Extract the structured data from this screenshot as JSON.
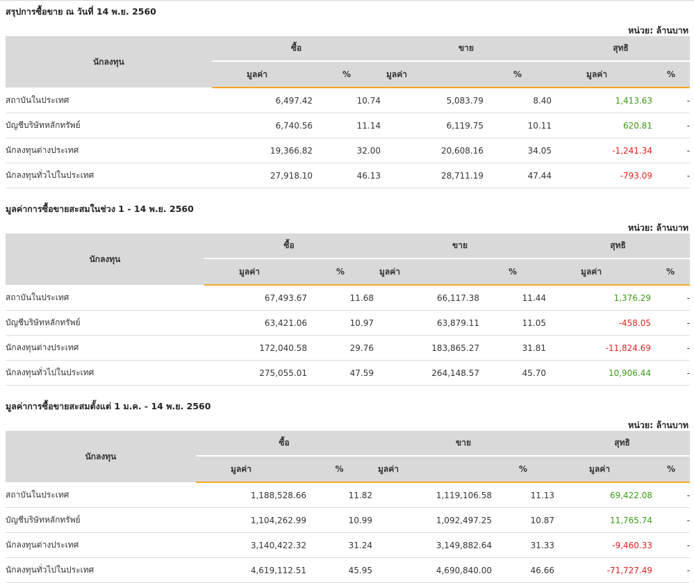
{
  "sections": [
    {
      "title": "สรุปการซื้อขาย ณ วันที่ 14 พ.ย. 2560",
      "unit": "หน่วย: ล้านบาท",
      "headers": {
        "investor": "นักลงทุน",
        "buy": "ซื้อ",
        "sell": "ขาย",
        "net": "สุทธิ",
        "value": "มูลค่า",
        "percent": "%"
      },
      "rows": [
        {
          "name": "สถาบันในประเทศ",
          "buy_value": "6,497.42",
          "buy_pct": "10.74",
          "sell_value": "5,083.79",
          "sell_pct": "8.40",
          "net_value": "1,413.63",
          "net_pct": "-",
          "net_sign": "pos"
        },
        {
          "name": "บัญชีบริษัทหลักทรัพย์",
          "buy_value": "6,740.56",
          "buy_pct": "11.14",
          "sell_value": "6,119.75",
          "sell_pct": "10.11",
          "net_value": "620.81",
          "net_pct": "-",
          "net_sign": "pos"
        },
        {
          "name": "นักลงทุนต่างประเทศ",
          "buy_value": "19,366.82",
          "buy_pct": "32.00",
          "sell_value": "20,608.16",
          "sell_pct": "34.05",
          "net_value": "-1,241.34",
          "net_pct": "-",
          "net_sign": "neg"
        },
        {
          "name": "นักลงทุนทั่วไปในประเทศ",
          "buy_value": "27,918.10",
          "buy_pct": "46.13",
          "sell_value": "28,711.19",
          "sell_pct": "47.44",
          "net_value": "-793.09",
          "net_pct": "-",
          "net_sign": "neg"
        }
      ]
    },
    {
      "title": "มูลค่าการซื้อขายสะสมในช่วง 1 - 14 พ.ย. 2560",
      "unit": "หน่วย: ล้านบาท",
      "headers": {
        "investor": "นักลงทุน",
        "buy": "ซื้อ",
        "sell": "ขาย",
        "net": "สุทธิ",
        "value": "มูลค่า",
        "percent": "%"
      },
      "rows": [
        {
          "name": "สถาบันในประเทศ",
          "buy_value": "67,493.67",
          "buy_pct": "11.68",
          "sell_value": "66,117.38",
          "sell_pct": "11.44",
          "net_value": "1,376.29",
          "net_pct": "-",
          "net_sign": "pos"
        },
        {
          "name": "บัญชีบริษัทหลักทรัพย์",
          "buy_value": "63,421.06",
          "buy_pct": "10.97",
          "sell_value": "63,879.11",
          "sell_pct": "11.05",
          "net_value": "-458.05",
          "net_pct": "-",
          "net_sign": "neg"
        },
        {
          "name": "นักลงทุนต่างประเทศ",
          "buy_value": "172,040.58",
          "buy_pct": "29.76",
          "sell_value": "183,865.27",
          "sell_pct": "31.81",
          "net_value": "-11,824.69",
          "net_pct": "-",
          "net_sign": "neg"
        },
        {
          "name": "นักลงทุนทั่วไปในประเทศ",
          "buy_value": "275,055.01",
          "buy_pct": "47.59",
          "sell_value": "264,148.57",
          "sell_pct": "45.70",
          "net_value": "10,906.44",
          "net_pct": "-",
          "net_sign": "pos"
        }
      ]
    },
    {
      "title": "มูลค่าการซื้อขายสะสมตั้งแต่ 1 ม.ค. - 14 พ.ย. 2560",
      "unit": "หน่วย: ล้านบาท",
      "headers": {
        "investor": "นักลงทุน",
        "buy": "ซื้อ",
        "sell": "ขาย",
        "net": "สุทธิ",
        "value": "มูลค่า",
        "percent": "%"
      },
      "rows": [
        {
          "name": "สถาบันในประเทศ",
          "buy_value": "1,188,528.66",
          "buy_pct": "11.82",
          "sell_value": "1,119,106.58",
          "sell_pct": "11.13",
          "net_value": "69,422.08",
          "net_pct": "-",
          "net_sign": "pos"
        },
        {
          "name": "บัญชีบริษัทหลักทรัพย์",
          "buy_value": "1,104,262.99",
          "buy_pct": "10.99",
          "sell_value": "1,092,497.25",
          "sell_pct": "10.87",
          "net_value": "11,765.74",
          "net_pct": "-",
          "net_sign": "pos"
        },
        {
          "name": "นักลงทุนต่างประเทศ",
          "buy_value": "3,140,422.32",
          "buy_pct": "31.24",
          "sell_value": "3,149,882.64",
          "sell_pct": "31.33",
          "net_value": "-9,460.33",
          "net_pct": "-",
          "net_sign": "neg"
        },
        {
          "name": "นักลงทุนทั่วไปในประเทศ",
          "buy_value": "4,619,112.51",
          "buy_pct": "45.95",
          "sell_value": "4,690,840.00",
          "sell_pct": "46.66",
          "net_value": "-71,727.49",
          "net_pct": "-",
          "net_sign": "neg"
        }
      ]
    }
  ],
  "colors": {
    "header_bg": "#d9d9d9",
    "accent_border": "#f5a623",
    "positive": "#3c9a17",
    "negative": "#e02020"
  }
}
